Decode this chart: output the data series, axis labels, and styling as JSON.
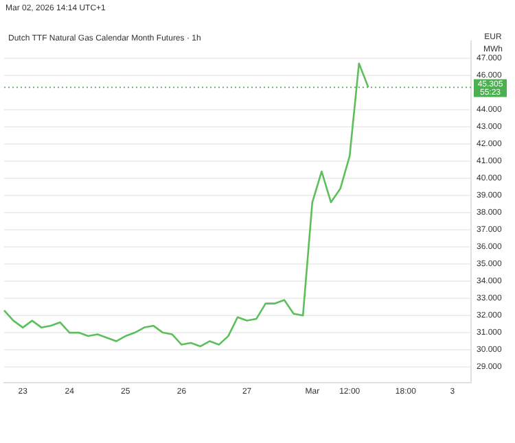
{
  "chart_data": {
    "type": "line",
    "title": "Dutch TTF Natural Gas Calendar Month Futures · 1h",
    "ylabel": "EUR\nMWh",
    "annotations": [
      "Mar 02, 2026 14:14 UTC+1",
      "55:23"
    ],
    "categories": [
      null,
      null,
      "23",
      null,
      null,
      null,
      null,
      "24",
      null,
      null,
      null,
      null,
      null,
      "25",
      null,
      null,
      null,
      null,
      null,
      "26",
      null,
      null,
      null,
      null,
      null,
      null,
      "27",
      null,
      null,
      null,
      null,
      null,
      null,
      "Mar",
      null,
      null,
      null,
      "12:00",
      null,
      null,
      null,
      null,
      null,
      "18:00",
      null,
      null,
      null,
      null,
      "3",
      null,
      null
    ],
    "series": [
      {
        "color": "#5cbf5a",
        "values": [
          32.3,
          31.7,
          31.3,
          31.7,
          31.3,
          31.4,
          31.6,
          31.0,
          31.0,
          30.8,
          30.9,
          30.7,
          30.5,
          30.8,
          31.0,
          31.3,
          31.4,
          31.0,
          30.9,
          30.3,
          30.4,
          30.2,
          30.5,
          30.3,
          30.8,
          31.9,
          31.7,
          31.8,
          32.7,
          32.7,
          32.9,
          32.1,
          32.0,
          38.6,
          40.4,
          38.6,
          39.4,
          41.3,
          46.7,
          45.305,
          null,
          null,
          null,
          null,
          null,
          null,
          null,
          null,
          null,
          null,
          null
        ]
      }
    ],
    "ylim": [
      28.1,
      48.0
    ],
    "yticks": [
      {
        "value": 29,
        "label": "29.000"
      },
      {
        "value": 30,
        "label": "30.000"
      },
      {
        "value": 31,
        "label": "31.000"
      },
      {
        "value": 32,
        "label": "32.000"
      },
      {
        "value": 33,
        "label": "33.000"
      },
      {
        "value": 34,
        "label": "34.000"
      },
      {
        "value": 35,
        "label": "35.000"
      },
      {
        "value": 36,
        "label": "36.000"
      },
      {
        "value": 37,
        "label": "37.000"
      },
      {
        "value": 38,
        "label": "38.000"
      },
      {
        "value": 39,
        "label": "39.000"
      },
      {
        "value": 40,
        "label": "40.000"
      },
      {
        "value": 41,
        "label": "41.000"
      },
      {
        "value": 42,
        "label": "42.000"
      },
      {
        "value": 43,
        "label": "43.000"
      },
      {
        "value": 44,
        "label": "44.000"
      },
      {
        "value": 46,
        "label": "46.000"
      },
      {
        "value": 47,
        "label": "47.000"
      }
    ],
    "ref_lines": [
      {
        "axis": "y",
        "value": 45.305,
        "label": "45.305",
        "color": "#4caf50",
        "line_style": "dotted"
      }
    ],
    "grid": "y",
    "marker": "none",
    "line_style": "solid"
  }
}
